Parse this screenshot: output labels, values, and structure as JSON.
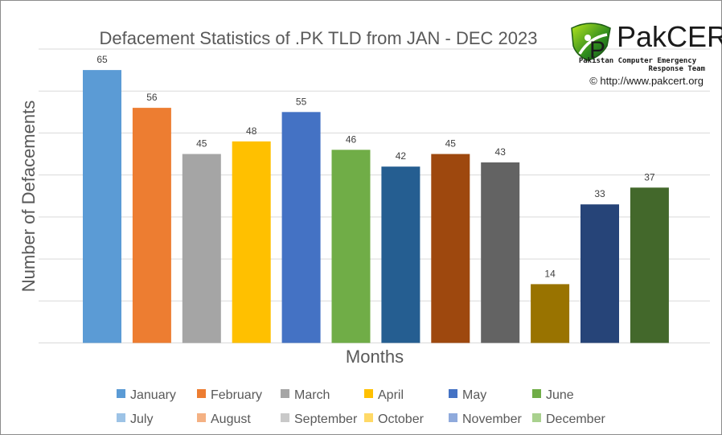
{
  "logo": {
    "name": "PakCERT",
    "tagline_line1": "Pakistan Computer Emergency",
    "tagline_line2": "Response Team",
    "url": "© http://www.pakcert.org"
  },
  "chart_data": {
    "type": "bar",
    "title": "Defacement Statistics of .PK TLD from JAN - DEC 2023",
    "xlabel": "Months",
    "ylabel": "Number of Defacements",
    "ylim": [
      0,
      70
    ],
    "grid": true,
    "legend_position": "bottom",
    "categories": [
      "January",
      "February",
      "March",
      "April",
      "May",
      "June",
      "July",
      "August",
      "September",
      "October",
      "November",
      "December"
    ],
    "values": [
      65,
      56,
      45,
      48,
      55,
      46,
      42,
      45,
      43,
      14,
      33,
      37
    ],
    "colors": [
      "#5b9bd5",
      "#ed7d31",
      "#a5a5a5",
      "#ffc000",
      "#4472c4",
      "#70ad47",
      "#255e91",
      "#9e480e",
      "#636363",
      "#997300",
      "#264478",
      "#43682b"
    ],
    "legend_colors": [
      "#5b9bd5",
      "#ed7d31",
      "#a5a5a5",
      "#ffc000",
      "#4472c4",
      "#70ad47",
      "#9dc3e6",
      "#f4b183",
      "#c9c9c9",
      "#ffd966",
      "#8faadc",
      "#a9d18e"
    ]
  }
}
